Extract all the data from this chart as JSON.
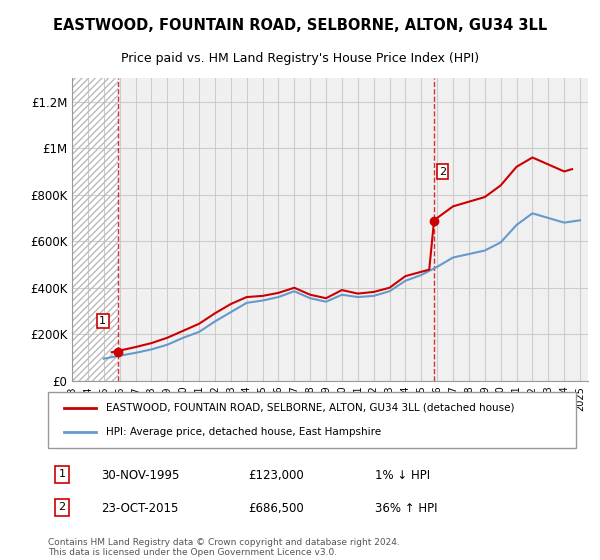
{
  "title": "EASTWOOD, FOUNTAIN ROAD, SELBORNE, ALTON, GU34 3LL",
  "subtitle": "Price paid vs. HM Land Registry's House Price Index (HPI)",
  "legend_line1": "EASTWOOD, FOUNTAIN ROAD, SELBORNE, ALTON, GU34 3LL (detached house)",
  "legend_line2": "HPI: Average price, detached house, East Hampshire",
  "annotation1": {
    "label": "1",
    "date": "30-NOV-1995",
    "price": 123000,
    "note": "1% ↓ HPI"
  },
  "annotation2": {
    "label": "2",
    "date": "23-OCT-2015",
    "price": 686500,
    "note": "36% ↑ HPI"
  },
  "xmin": 1993.0,
  "xmax": 2025.5,
  "ymin": 0,
  "ymax": 1300000,
  "yticks": [
    0,
    200000,
    400000,
    600000,
    800000,
    1000000,
    1200000
  ],
  "ytick_labels": [
    "£0",
    "£200K",
    "£400K",
    "£600K",
    "£800K",
    "£1M",
    "£1.2M"
  ],
  "price_color": "#cc0000",
  "hpi_color": "#6699cc",
  "background_color": "#ffffff",
  "plot_bg_color": "#f0f0f0",
  "hatch_region_end": 1995.9,
  "vline1_x": 1995.92,
  "vline2_x": 2015.81,
  "point1_x": 1995.92,
  "point1_y": 123000,
  "point2_x": 2015.81,
  "point2_y": 686500,
  "footer": "Contains HM Land Registry data © Crown copyright and database right 2024.\nThis data is licensed under the Open Government Licence v3.0.",
  "hpi_data_x": [
    1995,
    1996,
    1997,
    1998,
    1999,
    2000,
    2001,
    2002,
    2003,
    2004,
    2005,
    2006,
    2007,
    2008,
    2009,
    2010,
    2011,
    2012,
    2013,
    2014,
    2015,
    2016,
    2017,
    2018,
    2019,
    2020,
    2021,
    2022,
    2023,
    2024,
    2025
  ],
  "hpi_data_y": [
    95000,
    108000,
    120000,
    135000,
    155000,
    185000,
    210000,
    255000,
    295000,
    335000,
    345000,
    360000,
    385000,
    355000,
    340000,
    370000,
    360000,
    365000,
    385000,
    430000,
    455000,
    490000,
    530000,
    545000,
    560000,
    595000,
    670000,
    720000,
    700000,
    680000,
    690000
  ],
  "price_data_x": [
    1995.5,
    1996,
    1997,
    1998,
    1999,
    2000,
    2001,
    2002,
    2003,
    2004,
    2005,
    2006,
    2007,
    2008,
    2009,
    2010,
    2011,
    2012,
    2013,
    2014,
    2015.5,
    2015.8,
    2016,
    2017,
    2018,
    2019,
    2020,
    2021,
    2022,
    2023,
    2024,
    2024.5
  ],
  "price_data_y": [
    123000,
    130000,
    145000,
    162000,
    185000,
    215000,
    245000,
    290000,
    330000,
    360000,
    365000,
    378000,
    400000,
    370000,
    355000,
    390000,
    375000,
    382000,
    400000,
    450000,
    478000,
    686500,
    700000,
    750000,
    770000,
    790000,
    840000,
    920000,
    960000,
    930000,
    900000,
    910000
  ]
}
